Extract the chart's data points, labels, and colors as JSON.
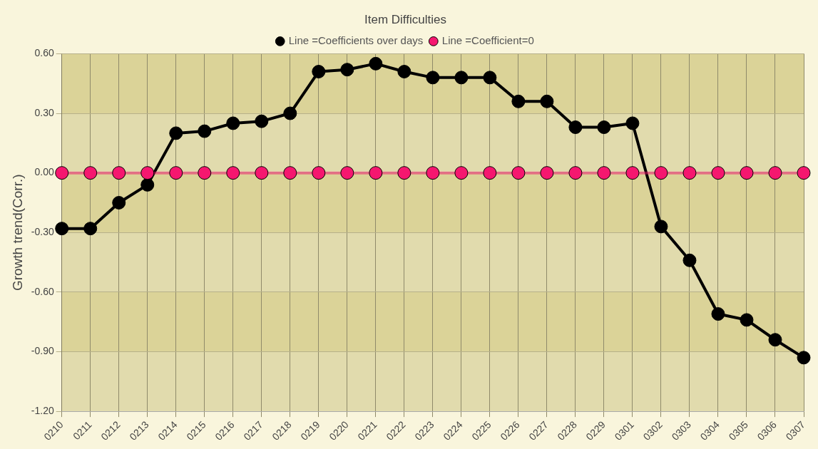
{
  "chart_data": {
    "type": "line",
    "title": "Item Difficulties",
    "ylabel": "Growth trend(Corr.)",
    "categories": [
      "0210",
      "0211",
      "0212",
      "0213",
      "0214",
      "0215",
      "0216",
      "0217",
      "0218",
      "0219",
      "0220",
      "0221",
      "0222",
      "0223",
      "0224",
      "0225",
      "0226",
      "0227",
      "0228",
      "0229",
      "0301",
      "0302",
      "0303",
      "0304",
      "0305",
      "0306",
      "0307"
    ],
    "series": [
      {
        "name": "Line =Coefficients over days",
        "color": "#000000",
        "values": [
          -0.28,
          -0.28,
          -0.15,
          -0.06,
          0.2,
          0.21,
          0.25,
          0.26,
          0.3,
          0.51,
          0.52,
          0.55,
          0.51,
          0.48,
          0.48,
          0.48,
          0.36,
          0.36,
          0.23,
          0.23,
          0.25,
          -0.27,
          -0.44,
          -0.71,
          -0.74,
          -0.84,
          -0.93
        ]
      },
      {
        "name": "Line =Coefficient=0",
        "color": "#f5176f",
        "values": [
          0,
          0,
          0,
          0,
          0,
          0,
          0,
          0,
          0,
          0,
          0,
          0,
          0,
          0,
          0,
          0,
          0,
          0,
          0,
          0,
          0,
          0,
          0,
          0,
          0,
          0,
          0
        ]
      }
    ],
    "ylim": [
      -1.2,
      0.6
    ],
    "yticks": [
      {
        "value": -1.2,
        "label": "-1.20"
      },
      {
        "value": -0.9,
        "label": "-0.90"
      },
      {
        "value": -0.6,
        "label": "-0.60"
      },
      {
        "value": -0.3,
        "label": "-0.30"
      },
      {
        "value": 0,
        "label": "0.00"
      },
      {
        "value": 0.3,
        "label": "0.30"
      },
      {
        "value": 0.6,
        "label": "0.60"
      }
    ],
    "bands": [
      {
        "axis": "y",
        "from": -1.2,
        "to": -0.9,
        "color": "#e1dbad"
      },
      {
        "axis": "y",
        "from": -0.9,
        "to": -0.6,
        "color": "#dbd398"
      },
      {
        "axis": "y",
        "from": -0.6,
        "to": -0.3,
        "color": "#e1dbad"
      },
      {
        "axis": "y",
        "from": -0.3,
        "to": 0,
        "color": "#dbd398"
      },
      {
        "axis": "y",
        "from": 0,
        "to": 0.3,
        "color": "#e1dbad"
      },
      {
        "axis": "y",
        "from": 0.3,
        "to": 0.6,
        "color": "#dbd398"
      }
    ],
    "grid": true,
    "legend": "top",
    "marker": "circle",
    "line_style": "solid"
  }
}
